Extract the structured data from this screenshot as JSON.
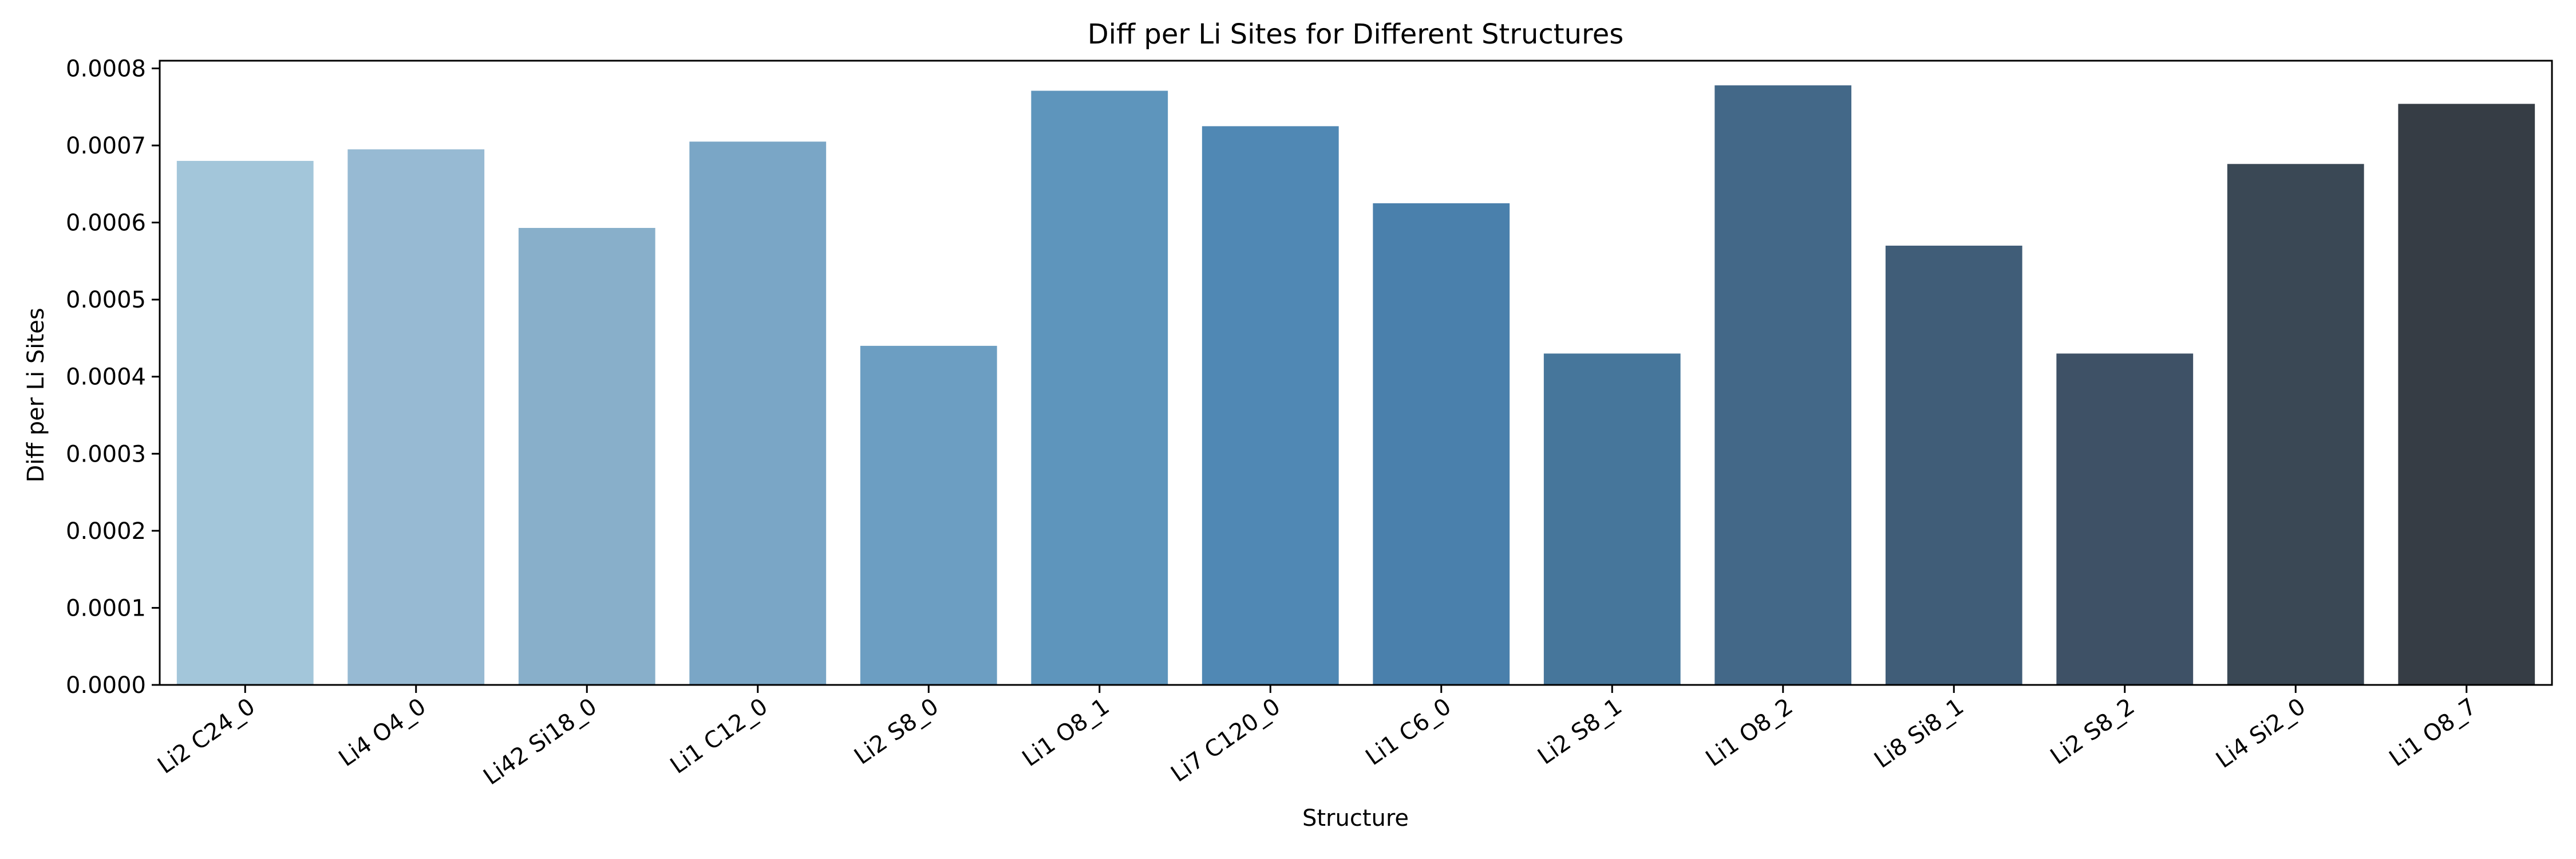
{
  "chart_data": {
    "type": "bar",
    "title": "Diff per Li Sites for Different Structures",
    "xlabel": "Structure",
    "ylabel": "Diff per Li Sites",
    "categories": [
      "Li2 C24_0",
      "Li4 O4_0",
      "Li42 Si18_0",
      "Li1 C12_0",
      "Li2 S8_0",
      "Li1 O8_1",
      "Li7 C120_0",
      "Li1 C6_0",
      "Li2 S8_1",
      "Li1 O8_2",
      "Li8 Si8_1",
      "Li2 S8_2",
      "Li4 Si2_0",
      "Li1 O8_7"
    ],
    "values": [
      0.00068,
      0.000695,
      0.000593,
      0.000705,
      0.00044,
      0.000771,
      0.000725,
      0.000625,
      0.00043,
      0.000778,
      0.00057,
      0.00043,
      0.000676,
      0.000754
    ],
    "ylim": [
      0,
      0.00081
    ],
    "yticks": [
      "0.0000",
      "0.0001",
      "0.0002",
      "0.0003",
      "0.0004",
      "0.0005",
      "0.0006",
      "0.0007",
      "0.0008"
    ],
    "ytick_values": [
      0,
      0.0001,
      0.0002,
      0.0003,
      0.0004,
      0.0005,
      0.0006,
      0.0007,
      0.0008
    ],
    "grid": false,
    "colors": [
      "#a3c6da",
      "#97bad3",
      "#88afca",
      "#7aa6c6",
      "#6c9ec2",
      "#5e95bc",
      "#5088b4",
      "#4a80ac",
      "#46769b",
      "#436888",
      "#405d78",
      "#3e5166",
      "#3a4855",
      "#363d45"
    ]
  }
}
